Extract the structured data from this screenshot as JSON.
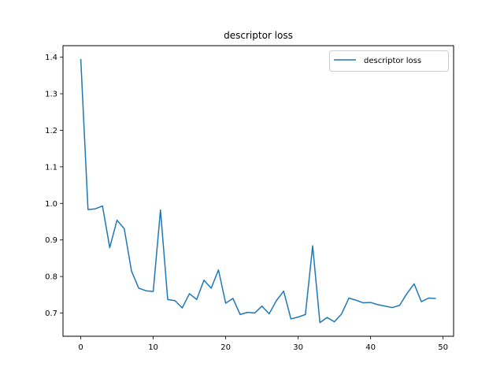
{
  "chart_data": {
    "type": "line",
    "title": "descriptor loss",
    "xlabel": "",
    "ylabel": "",
    "xlim": [
      -2.45,
      51.45
    ],
    "ylim": [
      0.6365,
      1.4315
    ],
    "grid": false,
    "legend_position": "top-right",
    "x_ticks": [
      0,
      10,
      20,
      30,
      40,
      50
    ],
    "y_ticks": [
      0.7,
      0.8,
      0.9,
      1.0,
      1.1,
      1.2,
      1.3,
      1.4
    ],
    "x_tick_labels": [
      "0",
      "10",
      "20",
      "30",
      "40",
      "50"
    ],
    "y_tick_labels": [
      "0.7",
      "0.8",
      "0.9",
      "1.0",
      "1.1",
      "1.2",
      "1.3",
      "1.4"
    ],
    "series": [
      {
        "name": "descriptor loss",
        "color": "#1f77b4",
        "x": [
          0,
          1,
          2,
          3,
          4,
          5,
          6,
          7,
          8,
          9,
          10,
          11,
          12,
          13,
          14,
          15,
          16,
          17,
          18,
          19,
          20,
          21,
          22,
          23,
          24,
          25,
          26,
          27,
          28,
          29,
          30,
          31,
          32,
          33,
          34,
          35,
          36,
          37,
          38,
          39,
          40,
          41,
          42,
          43,
          44,
          45,
          46,
          47,
          48,
          49
        ],
        "y": [
          1.395,
          0.983,
          0.985,
          0.993,
          0.879,
          0.954,
          0.931,
          0.815,
          0.768,
          0.761,
          0.759,
          0.982,
          0.737,
          0.734,
          0.714,
          0.753,
          0.737,
          0.79,
          0.768,
          0.818,
          0.727,
          0.74,
          0.696,
          0.702,
          0.7,
          0.719,
          0.698,
          0.734,
          0.76,
          0.684,
          0.689,
          0.696,
          0.884,
          0.674,
          0.688,
          0.676,
          0.698,
          0.741,
          0.735,
          0.728,
          0.729,
          0.723,
          0.719,
          0.715,
          0.721,
          0.753,
          0.78,
          0.731,
          0.741,
          0.74
        ]
      }
    ]
  }
}
